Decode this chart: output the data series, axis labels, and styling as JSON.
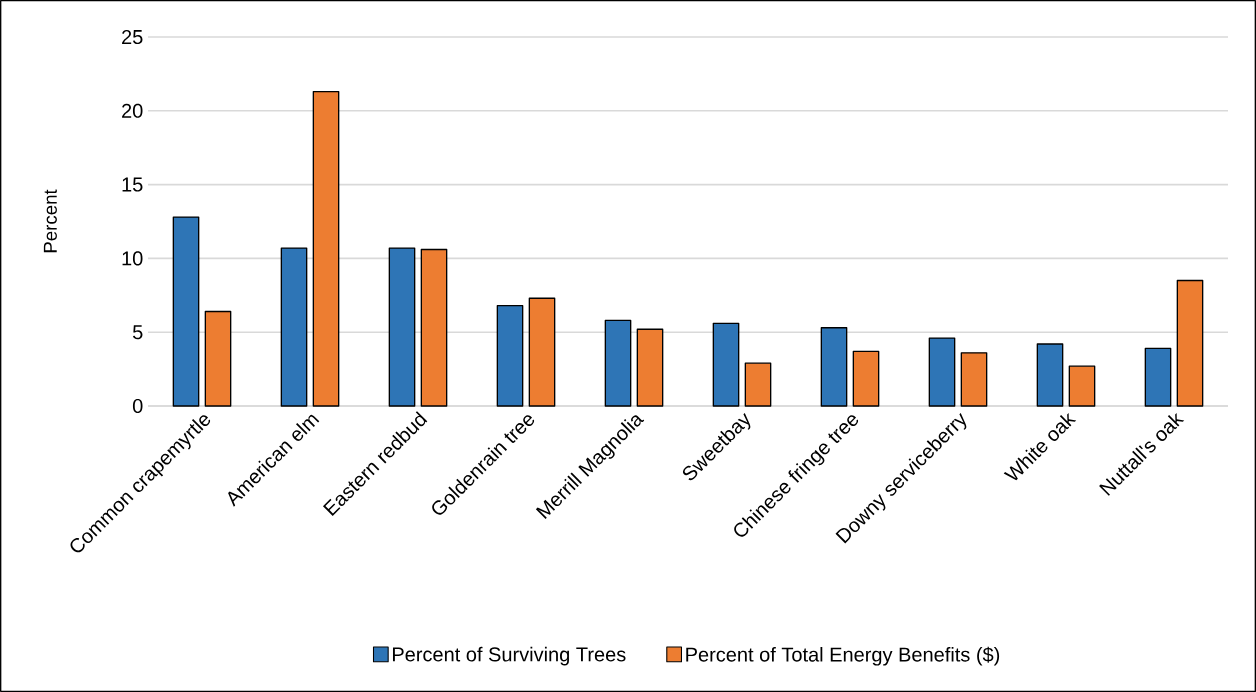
{
  "chart_data": {
    "type": "bar",
    "ylabel": "Percent",
    "categories": [
      "Common crapemyrtle",
      "American elm",
      "Eastern redbud",
      "Goldenrain tree",
      "Merrill Magnolia",
      "Sweetbay",
      "Chinese fringe tree",
      "Downy serviceberry",
      "White oak",
      "Nuttall's oak"
    ],
    "series": [
      {
        "name": "Percent of Surviving Trees",
        "color": "#2e75b6",
        "values": [
          12.8,
          10.7,
          10.7,
          6.8,
          5.8,
          5.6,
          5.3,
          4.6,
          4.2,
          3.9
        ]
      },
      {
        "name": "Percent of Total Energy Benefits ($)",
        "color": "#ed7d31",
        "values": [
          6.4,
          21.3,
          10.6,
          7.3,
          5.2,
          2.9,
          3.7,
          3.6,
          2.7,
          8.5
        ]
      }
    ],
    "ylim": [
      0,
      25
    ],
    "yticks": [
      0,
      5,
      10,
      15,
      20,
      25
    ],
    "grid": "y",
    "legend": "bottom"
  }
}
